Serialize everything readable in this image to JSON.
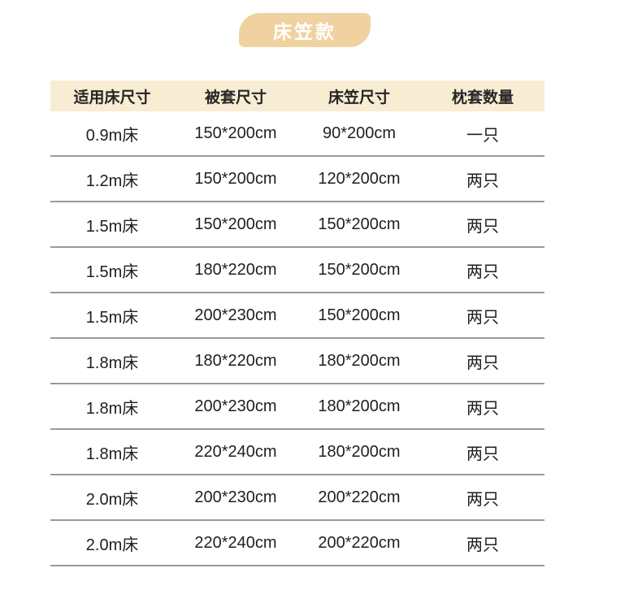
{
  "title_badge": {
    "label": "床笠款"
  },
  "table": {
    "columns": [
      "适用床尺寸",
      "被套尺寸",
      "床笠尺寸",
      "枕套数量"
    ],
    "rows": [
      [
        "0.9m床",
        "150*200cm",
        "90*200cm",
        "一只"
      ],
      [
        "1.2m床",
        "150*200cm",
        "120*200cm",
        "两只"
      ],
      [
        "1.5m床",
        "150*200cm",
        "150*200cm",
        "两只"
      ],
      [
        "1.5m床",
        "180*220cm",
        "150*200cm",
        "两只"
      ],
      [
        "1.5m床",
        "200*230cm",
        "150*200cm",
        "两只"
      ],
      [
        "1.8m床",
        "180*220cm",
        "180*200cm",
        "两只"
      ],
      [
        "1.8m床",
        "200*230cm",
        "180*200cm",
        "两只"
      ],
      [
        "1.8m床",
        "220*240cm",
        "180*200cm",
        "两只"
      ],
      [
        "2.0m床",
        "200*230cm",
        "200*220cm",
        "两只"
      ],
      [
        "2.0m床",
        "220*240cm",
        "200*220cm",
        "两只"
      ]
    ]
  },
  "colors": {
    "badge_bg": "#EFD2A0",
    "badge_text": "#FFFFFF",
    "header_bg": "#F8ECD3",
    "divider": "#9A9A9A",
    "cell_text": "#1F1F1F",
    "header_text": "#262626"
  }
}
